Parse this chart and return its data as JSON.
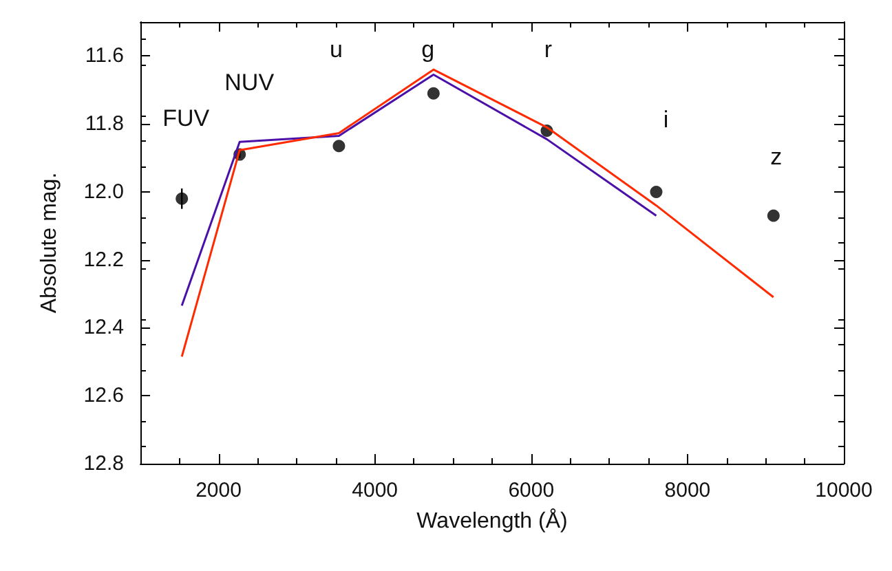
{
  "chart_data": {
    "type": "line",
    "xlabel": "Wavelength (Å)",
    "ylabel": "Absolute mag.",
    "xlim": [
      1000,
      10000
    ],
    "xticks": [
      2000,
      4000,
      6000,
      8000,
      10000
    ],
    "ylim": [
      12.8,
      11.5
    ],
    "yticks": [
      11.6,
      11.8,
      {
        "value": 12,
        "label": "12.0"
      },
      12.2,
      12.4,
      12.6,
      12.8
    ],
    "grid": false,
    "series": [
      {
        "type": "scatter",
        "color": "#000000",
        "marker": "circle",
        "x": [
          1530,
          2270,
          3540,
          4750,
          6200,
          7600,
          9100
        ],
        "values": [
          12.02,
          11.89,
          11.865,
          11.71,
          11.82,
          12.0,
          12.07
        ],
        "errors": [
          0.03,
          0.01,
          null,
          null,
          null,
          null,
          null
        ]
      },
      {
        "color": "#4b10a8",
        "x": [
          1530,
          2270,
          3540,
          4750,
          6200,
          7600
        ],
        "values": [
          12.335,
          11.853,
          11.835,
          11.655,
          11.845,
          12.07
        ]
      },
      {
        "color": "#ff2a00",
        "x": [
          1530,
          2270,
          3540,
          4750,
          6200,
          7600,
          9100
        ],
        "values": [
          12.485,
          11.877,
          11.827,
          11.64,
          11.81,
          12.04,
          12.31
        ]
      }
    ],
    "annotations": [
      "FUV",
      "NUV",
      "u",
      "g",
      "r",
      "i",
      "z"
    ]
  }
}
